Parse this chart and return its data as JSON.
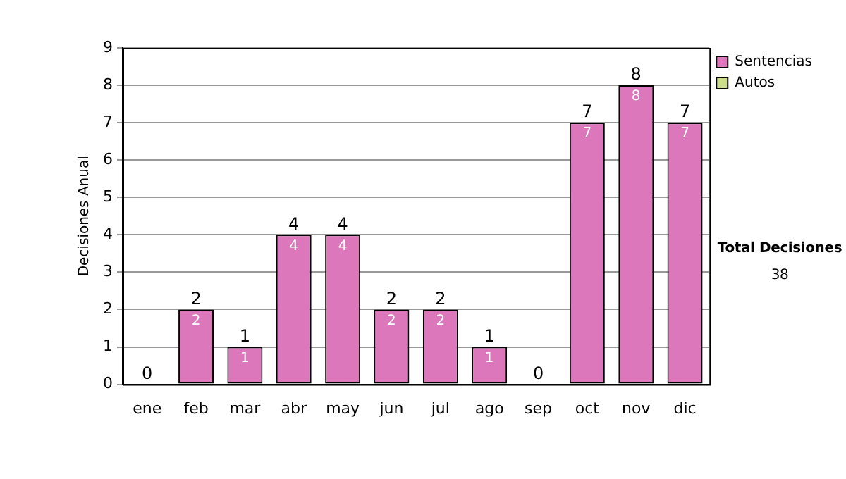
{
  "chart_data": {
    "type": "bar",
    "stacked": true,
    "ylabel": "Decisiones Anual",
    "categories": [
      "ene",
      "feb",
      "mar",
      "abr",
      "may",
      "jun",
      "jul",
      "ago",
      "sep",
      "oct",
      "nov",
      "dic"
    ],
    "series": [
      {
        "name": "Sentencias",
        "color": "#dd77bb",
        "values": [
          0,
          2,
          1,
          4,
          4,
          2,
          2,
          1,
          0,
          7,
          8,
          7
        ],
        "value_labels": [
          null,
          "2",
          "1",
          "4",
          "4",
          "2",
          "2",
          "1",
          null,
          "7",
          "8",
          "7"
        ]
      },
      {
        "name": "Autos",
        "color": "#ccdd88",
        "values": [
          0,
          0,
          0,
          0,
          0,
          0,
          0,
          0,
          0,
          0,
          0,
          0
        ]
      }
    ],
    "totals": [
      "0",
      "2",
      "1",
      "4",
      "4",
      "2",
      "2",
      "1",
      "0",
      "7",
      "8",
      "7"
    ],
    "ylim": [
      0,
      9
    ],
    "yticks": [
      0,
      1,
      2,
      3,
      4,
      5,
      6,
      7,
      8,
      9
    ],
    "grid": "y",
    "legend": "right",
    "annotations": [
      "Total Decisiones",
      "38"
    ]
  }
}
